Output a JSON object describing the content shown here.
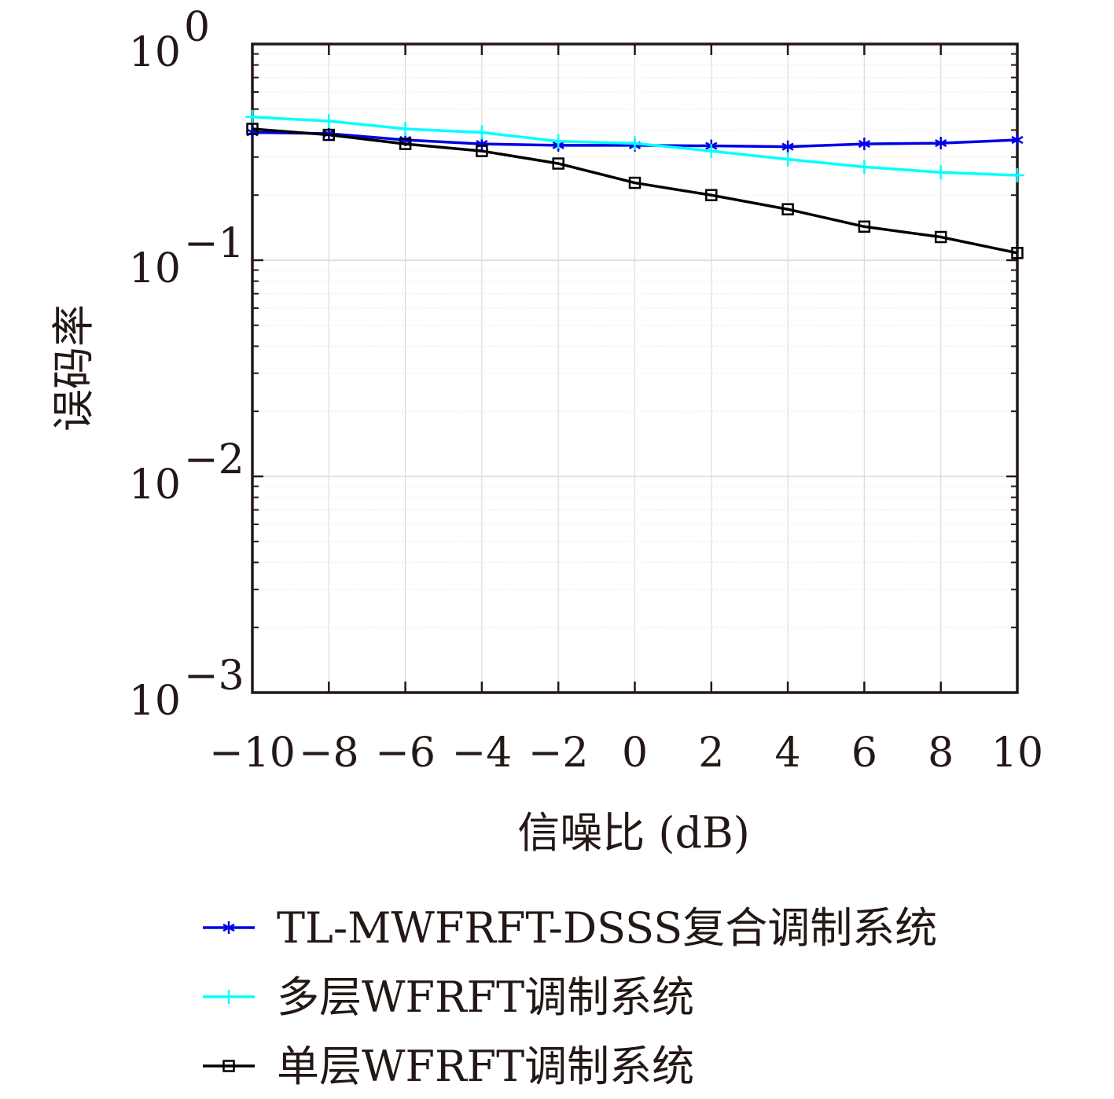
{
  "chart_data": {
    "type": "line",
    "title": "",
    "xlabel": "信噪比 (dB)",
    "ylabel": "误码率",
    "x": [
      -10,
      -8,
      -6,
      -4,
      -2,
      0,
      2,
      4,
      6,
      8,
      10
    ],
    "x_tick_labels": [
      "−10",
      "−8",
      "−6",
      "−4",
      "−2",
      "0",
      "2",
      "4",
      "6",
      "8",
      "10"
    ],
    "y_tick_labels": [
      {
        "base": "10",
        "exp": "0",
        "value": 1
      },
      {
        "base": "10",
        "exp": "−1",
        "value": 0.1
      },
      {
        "base": "10",
        "exp": "−2",
        "value": 0.01
      },
      {
        "base": "10",
        "exp": "−3",
        "value": 0.001
      }
    ],
    "xlim": [
      -10,
      10
    ],
    "ylim": [
      0.001,
      1
    ],
    "yscale": "log",
    "grid": true,
    "legend_position": "below",
    "series": [
      {
        "name": "TL-MWFRFT-DSSS复合调制系统",
        "color": "#0000e6",
        "marker": "asterisk",
        "values": [
          0.39,
          0.385,
          0.36,
          0.345,
          0.34,
          0.34,
          0.338,
          0.335,
          0.345,
          0.348,
          0.36
        ]
      },
      {
        "name": "多层WFRFT调制系统",
        "color": "#00ffff",
        "marker": "plus",
        "values": [
          0.46,
          0.44,
          0.405,
          0.39,
          0.355,
          0.347,
          0.32,
          0.293,
          0.27,
          0.255,
          0.247
        ]
      },
      {
        "name": "单层WFRFT调制系统",
        "color": "#000000",
        "marker": "square",
        "values": [
          0.405,
          0.38,
          0.345,
          0.32,
          0.28,
          0.228,
          0.2,
          0.172,
          0.143,
          0.128,
          0.108
        ]
      }
    ]
  }
}
